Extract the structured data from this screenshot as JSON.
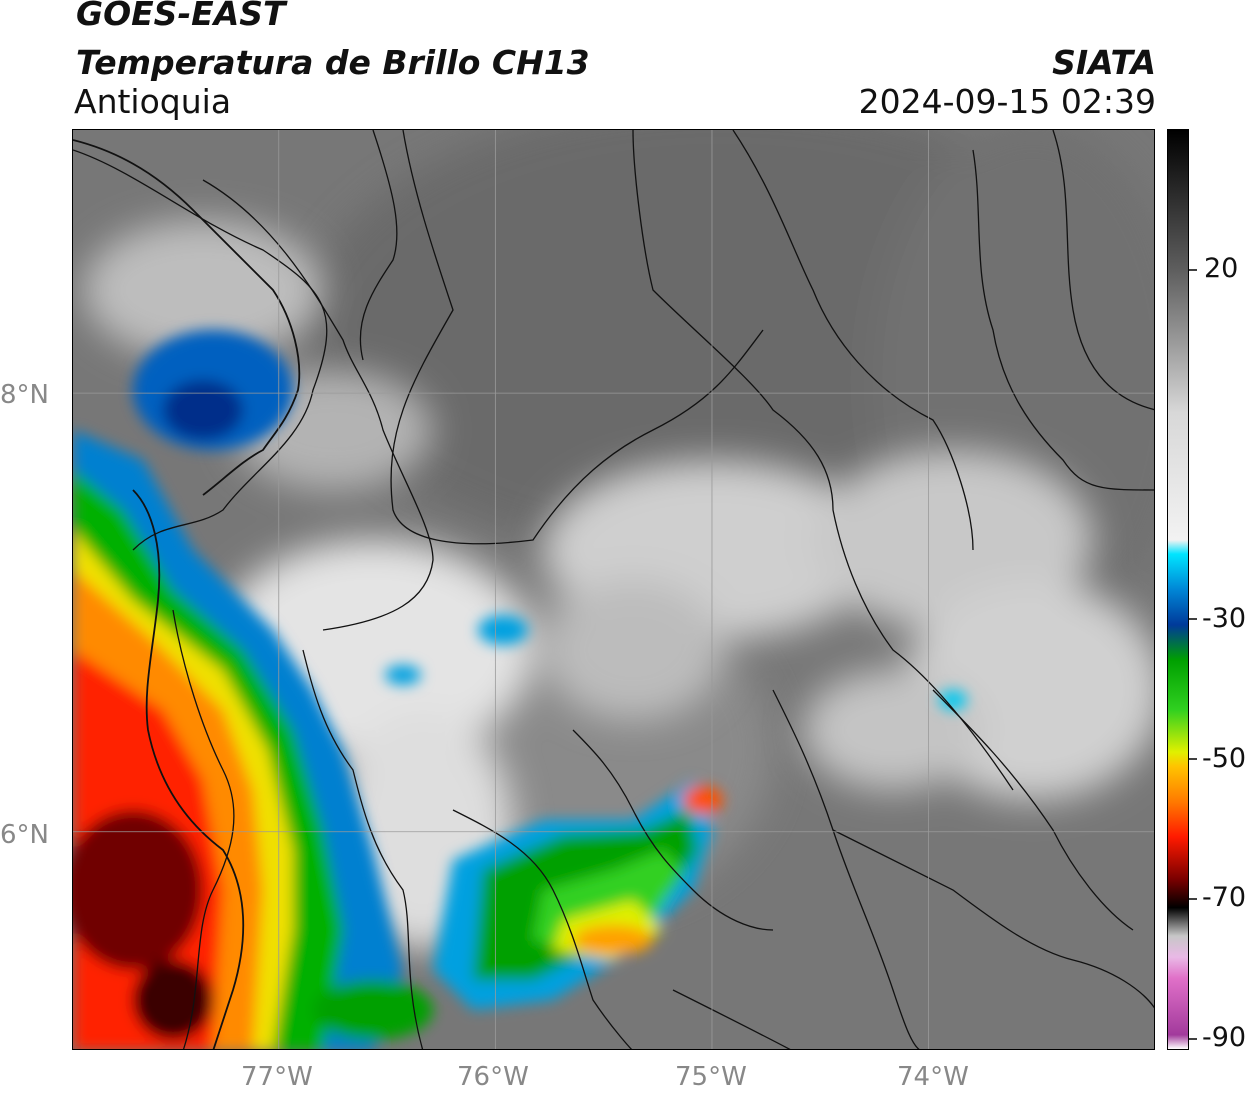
{
  "header": {
    "satellite": "GOES-EAST",
    "product": "Temperatura de Brillo CH13",
    "region": "Antioquia",
    "agency": "SIATA",
    "datetime": "2024-09-15 02:39"
  },
  "map": {
    "lat_labels": [
      "8°N",
      "6°N"
    ],
    "lon_labels": [
      "77°W",
      "76°W",
      "75°W",
      "74°W"
    ],
    "extent": {
      "lon": [
        -77.95,
        -72.95
      ],
      "lat": [
        5.0,
        9.2
      ]
    },
    "gridline_color": "#9a9a9a"
  },
  "colorbar": {
    "tick_labels": [
      "20",
      "-30",
      "-50",
      "-70",
      "-90"
    ],
    "range": [
      -90,
      40
    ],
    "stops": [
      {
        "t": 40,
        "color": "#000000"
      },
      {
        "t": 20,
        "color": "#5f5f5f"
      },
      {
        "t": 10,
        "color": "#9a9a9a"
      },
      {
        "t": 0,
        "color": "#d8d8d8"
      },
      {
        "t": -18,
        "color": "#f2f2f2"
      },
      {
        "t": -20,
        "color": "#00e5ff"
      },
      {
        "t": -25,
        "color": "#0086d6"
      },
      {
        "t": -30,
        "color": "#003a9a"
      },
      {
        "t": -35,
        "color": "#00a000"
      },
      {
        "t": -42,
        "color": "#30d020"
      },
      {
        "t": -48,
        "color": "#e0f000"
      },
      {
        "t": -50,
        "color": "#ffc400"
      },
      {
        "t": -55,
        "color": "#ff7a00"
      },
      {
        "t": -60,
        "color": "#ff1a00"
      },
      {
        "t": -66,
        "color": "#7a0000"
      },
      {
        "t": -70,
        "color": "#000000"
      },
      {
        "t": -74,
        "color": "#c7c7c7"
      },
      {
        "t": -77,
        "color": "#e9b9e6"
      },
      {
        "t": -80,
        "color": "#e070c8"
      },
      {
        "t": -88,
        "color": "#a23a9c"
      },
      {
        "t": -90,
        "color": "#ffffff"
      }
    ]
  }
}
